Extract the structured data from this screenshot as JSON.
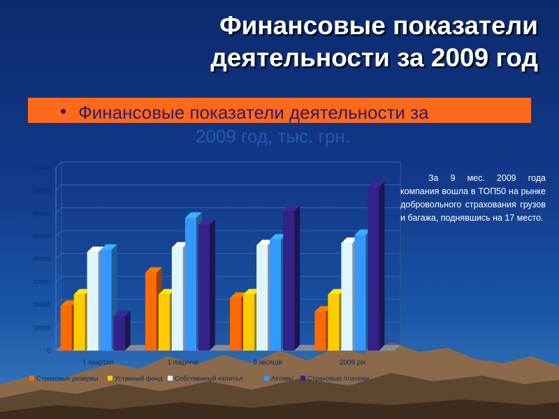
{
  "slide": {
    "title_line1": "Финансовые показатели",
    "title_line2": "деятельности за 2009 год",
    "bullet": "•",
    "subtitle_line1": "Финансовые показатели деятельности за",
    "subtitle_line2": "2009 год, тыс. грн.",
    "side_note": "За 9 мес. 2009 года компания вошла в ТОП50 на рынке добровольного страхования грузов и багажа, поднявшись на 17 место."
  },
  "chart_data": {
    "type": "bar",
    "title": "",
    "xlabel": "",
    "ylabel": "",
    "ylim": [
      0,
      80000
    ],
    "yticks": [
      "0",
      "10000",
      "20000",
      "30000",
      "40000",
      "50000",
      "60000",
      "70000",
      "80000"
    ],
    "grid": true,
    "legend_position": "bottom",
    "categories": [
      "1 квартал",
      "1 півріччя",
      "9 місяців",
      "2009 рік"
    ],
    "series": [
      {
        "name": "Страховые резервы",
        "color": "#ff6a00",
        "values": [
          19500,
          34000,
          23000,
          17000
        ]
      },
      {
        "name": "Уставный фонд",
        "color": "#ffcc00",
        "values": [
          24500,
          24500,
          24500,
          24500
        ]
      },
      {
        "name": "Собственный капитал",
        "color": "#dff6ff",
        "values": [
          43000,
          45000,
          46000,
          47000
        ]
      },
      {
        "name": "Активы",
        "color": "#3399ff",
        "values": [
          44000,
          58000,
          48500,
          50500
        ]
      },
      {
        "name": "Страховые платежи",
        "color": "#332288",
        "values": [
          15000,
          55000,
          61000,
          71500
        ]
      }
    ]
  }
}
